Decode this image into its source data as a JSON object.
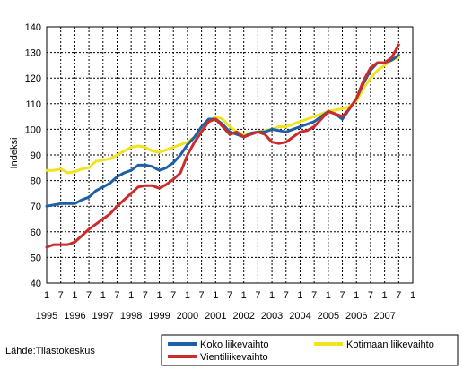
{
  "chart_data": {
    "type": "line",
    "ylabel": "Indeksi",
    "xlabel": "",
    "ylim": [
      40,
      140
    ],
    "yticks": [
      40,
      50,
      60,
      70,
      80,
      90,
      100,
      110,
      120,
      130,
      140
    ],
    "xlim": [
      1995.0,
      2008.0
    ],
    "x_month_labels": [
      "1",
      "7"
    ],
    "x_year_labels": [
      "1995",
      "1996",
      "1997",
      "1998",
      "1999",
      "2000",
      "2001",
      "2002",
      "2003",
      "2004",
      "2005",
      "2006",
      "2007"
    ],
    "grid": "dashed, both axes",
    "legend_placement": "bottom",
    "series": [
      {
        "name": "Koko liikevaihto",
        "color": "#1f5fa6",
        "x": [
          1995.0,
          1995.25,
          1995.5,
          1995.75,
          1996.0,
          1996.25,
          1996.5,
          1996.75,
          1997.0,
          1997.25,
          1997.5,
          1997.75,
          1998.0,
          1998.25,
          1998.5,
          1998.75,
          1999.0,
          1999.25,
          1999.5,
          1999.75,
          2000.0,
          2000.25,
          2000.5,
          2000.75,
          2001.0,
          2001.25,
          2001.5,
          2001.75,
          2002.0,
          2002.25,
          2002.5,
          2002.75,
          2003.0,
          2003.25,
          2003.5,
          2003.75,
          2004.0,
          2004.25,
          2004.5,
          2004.75,
          2005.0,
          2005.25,
          2005.5,
          2005.75,
          2006.0,
          2006.25,
          2006.5,
          2006.75,
          2007.0,
          2007.25,
          2007.5
        ],
        "y": [
          70,
          70.5,
          71,
          71,
          71,
          72.5,
          73.5,
          76,
          77.5,
          79,
          81.5,
          83,
          84,
          86,
          86,
          85.5,
          84,
          85,
          87,
          90,
          94,
          97,
          101,
          104,
          104,
          102,
          99,
          98,
          97,
          98.5,
          99,
          99,
          100,
          99.5,
          99,
          100,
          101,
          102,
          103,
          105,
          107,
          106,
          104,
          108,
          112,
          118,
          123,
          126,
          126,
          127,
          129
        ]
      },
      {
        "name": "Vientiliikevaihto",
        "color": "#cc2b2b",
        "x": [
          1995.0,
          1995.25,
          1995.5,
          1995.75,
          1996.0,
          1996.25,
          1996.5,
          1996.75,
          1997.0,
          1997.25,
          1997.5,
          1997.75,
          1998.0,
          1998.25,
          1998.5,
          1998.75,
          1999.0,
          1999.25,
          1999.5,
          1999.75,
          2000.0,
          2000.25,
          2000.5,
          2000.75,
          2001.0,
          2001.25,
          2001.5,
          2001.75,
          2002.0,
          2002.25,
          2002.5,
          2002.75,
          2003.0,
          2003.25,
          2003.5,
          2003.75,
          2004.0,
          2004.25,
          2004.5,
          2004.75,
          2005.0,
          2005.25,
          2005.5,
          2005.75,
          2006.0,
          2006.25,
          2006.5,
          2006.75,
          2007.0,
          2007.25,
          2007.5
        ],
        "y": [
          54,
          55,
          55,
          55,
          56,
          58.5,
          61,
          63,
          65,
          67,
          70,
          72.5,
          75,
          77.5,
          78,
          78,
          77,
          78.5,
          80.5,
          83,
          90,
          95,
          99,
          103,
          104,
          101,
          98,
          99,
          97,
          98,
          99,
          98,
          95,
          94.5,
          95,
          97,
          99,
          99.5,
          101,
          104,
          107,
          106,
          105,
          108,
          112,
          119,
          124,
          126,
          126,
          128,
          133
        ]
      },
      {
        "name": "Kotimaan liikevaihto",
        "color": "#f2e21f",
        "x": [
          1995.0,
          1995.25,
          1995.5,
          1995.75,
          1996.0,
          1996.25,
          1996.5,
          1996.75,
          1997.0,
          1997.25,
          1997.5,
          1997.75,
          1998.0,
          1998.25,
          1998.5,
          1998.75,
          1999.0,
          1999.25,
          1999.5,
          1999.75,
          2000.0,
          2000.25,
          2000.5,
          2000.75,
          2001.0,
          2001.25,
          2001.5,
          2001.75,
          2002.0,
          2002.25,
          2002.5,
          2002.75,
          2003.0,
          2003.25,
          2003.5,
          2003.75,
          2004.0,
          2004.25,
          2004.5,
          2004.75,
          2005.0,
          2005.25,
          2005.5,
          2005.75,
          2006.0,
          2006.25,
          2006.5,
          2006.75,
          2007.0,
          2007.25,
          2007.5
        ],
        "y": [
          84,
          84,
          84.5,
          83,
          83.5,
          84.5,
          85,
          87.5,
          88,
          88.5,
          90,
          91.5,
          93,
          93.5,
          93,
          91.5,
          91,
          92,
          93,
          94,
          95,
          97,
          100,
          103,
          105,
          104,
          101,
          99,
          98,
          98.5,
          99,
          99.5,
          100,
          101,
          101,
          102,
          103,
          104,
          105,
          106,
          107,
          107.5,
          108,
          109,
          111,
          116,
          120,
          123,
          125,
          127,
          128
        ]
      }
    ]
  },
  "source": "Lähde:Tilastokeskus"
}
